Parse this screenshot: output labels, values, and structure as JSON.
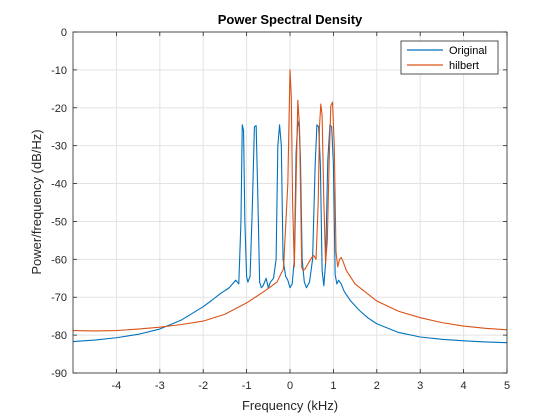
{
  "chart_data": {
    "type": "line",
    "title": "Power Spectral Density",
    "xlabel": "Frequency (kHz)",
    "ylabel": "Power/frequency (dB/Hz)",
    "xlim": [
      -5,
      5
    ],
    "ylim": [
      -90,
      0
    ],
    "grid": true,
    "legend_position": "top-right",
    "x_ticks": [
      -4,
      -3,
      -2,
      -1,
      0,
      1,
      2,
      3,
      4,
      5
    ],
    "y_ticks": [
      0,
      -10,
      -20,
      -30,
      -40,
      -50,
      -60,
      -70,
      -80,
      -90
    ],
    "colors": {
      "Original": "#0072BD",
      "hilbert": "#D95319",
      "grid": "#e3e3e3",
      "axis": "#262626"
    },
    "series": [
      {
        "name": "Original",
        "x": [
          -5.0,
          -4.5,
          -4.0,
          -3.5,
          -3.0,
          -2.5,
          -2.0,
          -1.8,
          -1.6,
          -1.4,
          -1.25,
          -1.18,
          -1.13,
          -1.1,
          -1.07,
          -1.04,
          -1.0,
          -0.97,
          -0.92,
          -0.87,
          -0.82,
          -0.78,
          -0.74,
          -0.7,
          -0.66,
          -0.62,
          -0.55,
          -0.5,
          -0.45,
          -0.38,
          -0.32,
          -0.28,
          -0.24,
          -0.2,
          -0.16,
          -0.1,
          -0.05,
          0.0,
          0.05,
          0.1,
          0.14,
          0.18,
          0.21,
          0.24,
          0.28,
          0.33,
          0.38,
          0.45,
          0.52,
          0.58,
          0.62,
          0.66,
          0.7,
          0.74,
          0.78,
          0.82,
          0.87,
          0.92,
          0.96,
          1.0,
          1.04,
          1.08,
          1.12,
          1.18,
          1.25,
          1.4,
          1.6,
          1.8,
          2.0,
          2.5,
          3.0,
          3.5,
          4.0,
          4.5,
          5.0
        ],
        "y": [
          -81.7,
          -81.3,
          -80.7,
          -79.8,
          -78.4,
          -76.0,
          -72.5,
          -70.8,
          -69.0,
          -67.5,
          -65.5,
          -66.5,
          -50.0,
          -24.5,
          -26.0,
          -50.0,
          -64.5,
          -66.0,
          -64.5,
          -47.0,
          -25.0,
          -24.7,
          -44.0,
          -66.0,
          -67.5,
          -67.0,
          -65.0,
          -67.5,
          -66.0,
          -65.0,
          -60.0,
          -30.0,
          -24.5,
          -30.0,
          -60.0,
          -64.5,
          -65.5,
          -67.5,
          -66.5,
          -60.0,
          -32.0,
          -23.5,
          -25.0,
          -33.0,
          -60.0,
          -66.0,
          -67.5,
          -66.0,
          -60.0,
          -35.0,
          -24.5,
          -25.0,
          -35.0,
          -63.0,
          -67.0,
          -61.0,
          -34.0,
          -24.5,
          -25.0,
          -35.0,
          -64.0,
          -66.5,
          -65.5,
          -66.5,
          -68.5,
          -71.0,
          -73.5,
          -75.5,
          -77.0,
          -79.3,
          -80.5,
          -81.1,
          -81.5,
          -81.8,
          -82.0
        ]
      },
      {
        "name": "hilbert",
        "x": [
          -5.0,
          -4.5,
          -4.0,
          -3.5,
          -3.0,
          -2.5,
          -2.0,
          -1.5,
          -1.0,
          -0.6,
          -0.3,
          -0.15,
          -0.05,
          0.0,
          0.03,
          0.06,
          0.1,
          0.14,
          0.18,
          0.22,
          0.27,
          0.3,
          0.35,
          0.4,
          0.45,
          0.5,
          0.55,
          0.6,
          0.65,
          0.68,
          0.71,
          0.74,
          0.78,
          0.82,
          0.86,
          0.9,
          0.94,
          0.98,
          1.02,
          1.06,
          1.1,
          1.14,
          1.18,
          1.22,
          1.3,
          1.5,
          2.0,
          2.5,
          3.0,
          3.5,
          4.0,
          4.5,
          5.0
        ],
        "y": [
          -78.8,
          -78.9,
          -78.8,
          -78.4,
          -77.9,
          -77.2,
          -76.3,
          -74.5,
          -71.5,
          -68.5,
          -66.0,
          -62.5,
          -40.0,
          -10.0,
          -17.0,
          -45.0,
          -62.0,
          -40.0,
          -18.0,
          -25.0,
          -62.0,
          -63.0,
          -62.5,
          -61.5,
          -60.5,
          -59.5,
          -59.0,
          -60.0,
          -45.0,
          -25.0,
          -19.0,
          -22.0,
          -45.0,
          -61.0,
          -55.0,
          -35.0,
          -19.5,
          -18.5,
          -30.0,
          -58.0,
          -62.0,
          -60.0,
          -59.5,
          -60.5,
          -63.0,
          -66.5,
          -71.0,
          -73.7,
          -75.4,
          -76.7,
          -77.6,
          -78.2,
          -78.6
        ]
      }
    ]
  }
}
